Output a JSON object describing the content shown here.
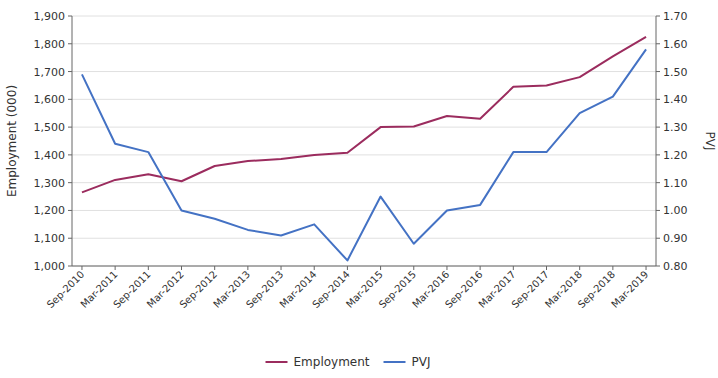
{
  "chart_data": {
    "type": "line",
    "categories": [
      "Sep-2010",
      "Mar-2011",
      "Sep-2011",
      "Mar-2012",
      "Sep-2012",
      "Mar-2013",
      "Sep-2013",
      "Mar-2014",
      "Sep-2014",
      "Mar-2015",
      "Sep-2015",
      "Mar-2016",
      "Sep-2016",
      "Mar-2017",
      "Sep-2017",
      "Mar-2018",
      "Sep-2018",
      "Mar-2019"
    ],
    "series": [
      {
        "name": "Employment",
        "color": "#9B2C5E",
        "values": [
          1265,
          1310,
          1330,
          1305,
          1360,
          1378,
          1385,
          1400,
          1408,
          1500,
          1502,
          1540,
          1530,
          1645,
          1650,
          1680,
          1755,
          1825
        ]
      },
      {
        "name": "PVJ",
        "color": "#4472C4",
        "axis": "y2",
        "values": [
          1.49,
          1.24,
          1.21,
          1.0,
          0.97,
          0.93,
          0.91,
          0.95,
          0.82,
          1.05,
          0.88,
          1.0,
          1.02,
          1.21,
          1.21,
          1.35,
          1.41,
          1.58
        ]
      }
    ],
    "ylabel": "Employment (000)",
    "y2label": "PVJ",
    "ylim": [
      1000,
      1900
    ],
    "yticks": [
      {
        "value": 1000,
        "label": "1,000"
      },
      {
        "value": 1100,
        "label": "1,100"
      },
      {
        "value": 1200,
        "label": "1,200"
      },
      {
        "value": 1300,
        "label": "1,300"
      },
      {
        "value": 1400,
        "label": "1,400"
      },
      {
        "value": 1500,
        "label": "1,500"
      },
      {
        "value": 1600,
        "label": "1,600"
      },
      {
        "value": 1700,
        "label": "1,700"
      },
      {
        "value": 1800,
        "label": "1,800"
      },
      {
        "value": 1900,
        "label": "1,900"
      }
    ],
    "y2lim": [
      0.8,
      1.7
    ],
    "y2ticks": [
      {
        "value": 0.8,
        "label": "0.80"
      },
      {
        "value": 0.9,
        "label": "0.90"
      },
      {
        "value": 1.0,
        "label": "1.00"
      },
      {
        "value": 1.1,
        "label": "1.10"
      },
      {
        "value": 1.2,
        "label": "1.20"
      },
      {
        "value": 1.3,
        "label": "1.30"
      },
      {
        "value": 1.4,
        "label": "1.40"
      },
      {
        "value": 1.5,
        "label": "1.50"
      },
      {
        "value": 1.6,
        "label": "1.60"
      },
      {
        "value": 1.7,
        "label": "1.70"
      }
    ],
    "grid": true,
    "legend": "bottom"
  }
}
